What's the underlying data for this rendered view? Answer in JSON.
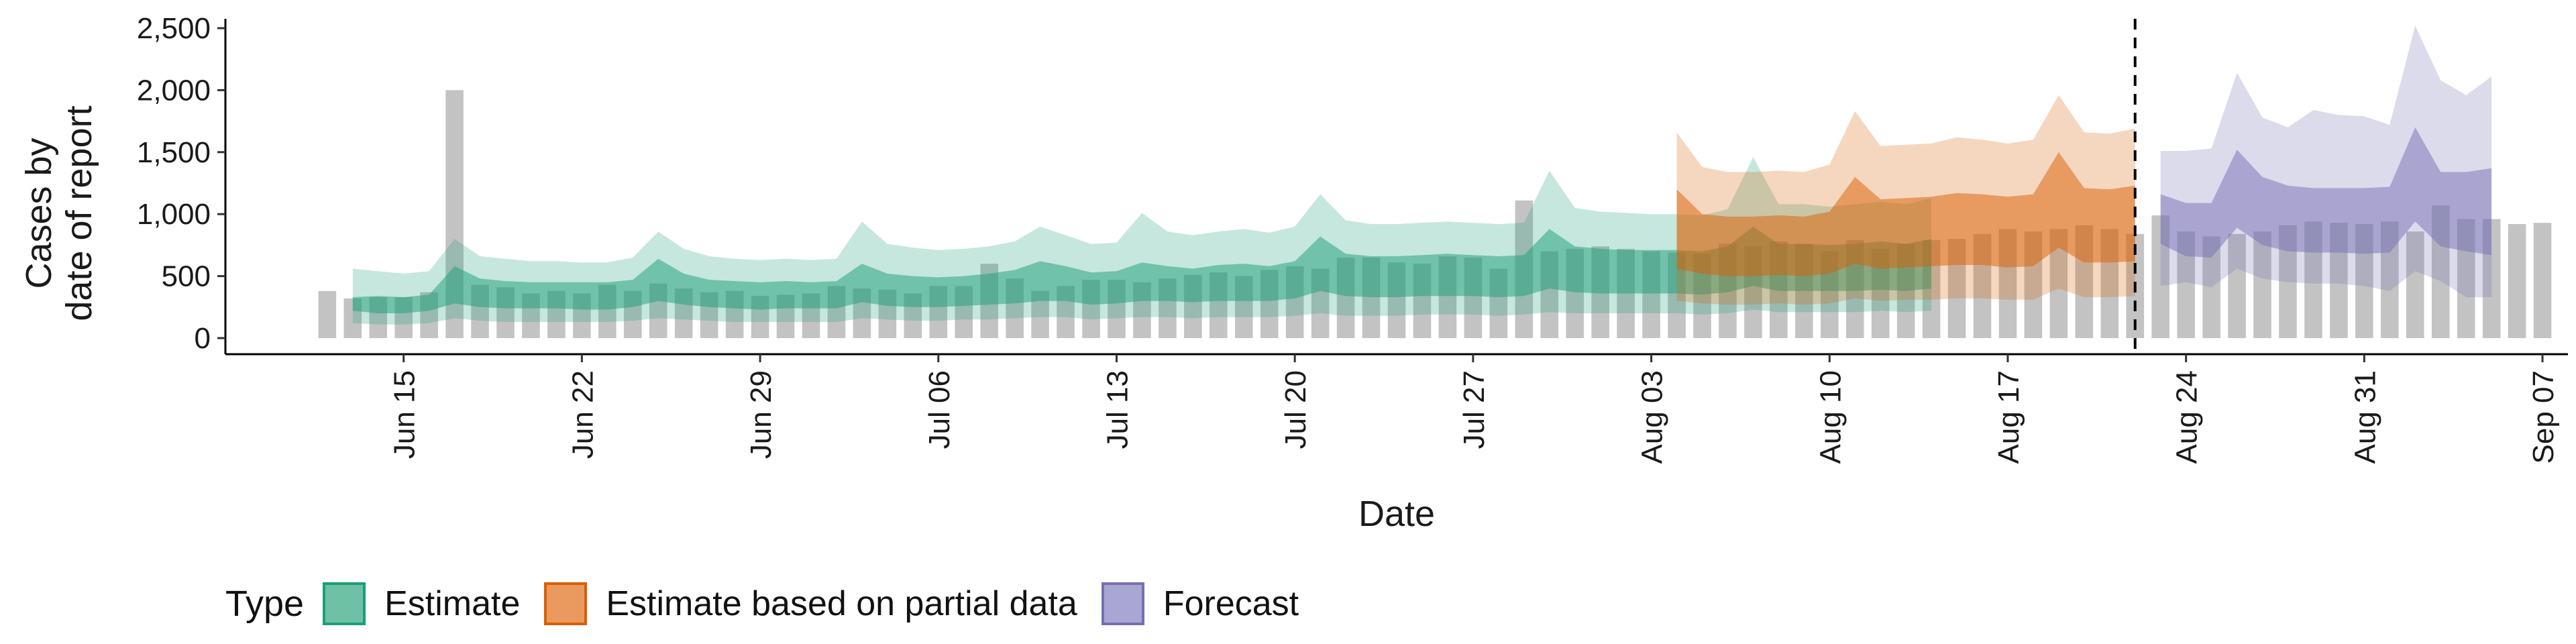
{
  "chart_data": {
    "type": "area",
    "xlabel": "Date",
    "ylabel": [
      "Cases by",
      "date of report"
    ],
    "ylim": [
      0,
      2600
    ],
    "yticks": [
      0,
      500,
      1000,
      1500,
      2000,
      2500
    ],
    "ytick_labels": [
      "0",
      "500",
      "1,000",
      "1,500",
      "2,000",
      "2,500"
    ],
    "xlim": [
      "2021-06-08",
      "2021-09-08"
    ],
    "xticks": [
      "2021-06-15",
      "2021-06-22",
      "2021-06-29",
      "2021-07-06",
      "2021-07-13",
      "2021-07-20",
      "2021-07-27",
      "2021-08-03",
      "2021-08-10",
      "2021-08-17",
      "2021-08-24",
      "2021-08-31",
      "2021-09-07"
    ],
    "xtick_labels": [
      "Jun 15",
      "Jun 22",
      "Jun 29",
      "Jul 06",
      "Jul 13",
      "Jul 20",
      "Jul 27",
      "Aug 03",
      "Aug 10",
      "Aug 17",
      "Aug 24",
      "Aug 31",
      "Sep 07"
    ],
    "vline_date": "2021-08-22",
    "grid": false,
    "legend_position": "bottom",
    "legend": {
      "title": "Type",
      "items": [
        {
          "label": "Estimate",
          "fill": "#6fc1a5",
          "border": "#1b9e77"
        },
        {
          "label": "Estimate based on partial data",
          "fill": "#eb9a5f",
          "border": "#d95f02"
        },
        {
          "label": "Forecast",
          "fill": "#a9a6d4",
          "border": "#7570b3"
        }
      ]
    },
    "colors": {
      "bars": "#bdbdbd",
      "Estimate": "#1b9e77",
      "Estimate based on partial data": "#d95f02",
      "Forecast": "#7570b3"
    },
    "reported_cases": {
      "start_date": "2021-06-12",
      "values": [
        380,
        320,
        330,
        330,
        370,
        2000,
        430,
        410,
        360,
        380,
        360,
        430,
        380,
        440,
        400,
        370,
        380,
        340,
        350,
        360,
        420,
        400,
        390,
        360,
        420,
        420,
        600,
        480,
        380,
        420,
        470,
        470,
        450,
        480,
        510,
        530,
        500,
        550,
        580,
        560,
        650,
        650,
        610,
        600,
        660,
        650,
        560,
        1110,
        700,
        720,
        740,
        720,
        700,
        690,
        680,
        760,
        740,
        780,
        760,
        700,
        790,
        720,
        760,
        790,
        800,
        840,
        880,
        860,
        880,
        910,
        880,
        840,
        990,
        860,
        820,
        840,
        860,
        910,
        940,
        930,
        920,
        940,
        860,
        1070,
        960,
        960,
        920,
        930
      ]
    },
    "series": [
      {
        "name": "Estimate",
        "start_date": "2021-06-13",
        "median": [
          340,
          330,
          320,
          330,
          430,
          380,
          370,
          360,
          360,
          360,
          360,
          380,
          480,
          420,
          380,
          370,
          360,
          370,
          360,
          370,
          470,
          420,
          400,
          390,
          400,
          410,
          440,
          470,
          460,
          420,
          430,
          480,
          460,
          450,
          470,
          480,
          460,
          500,
          620,
          540,
          520,
          520,
          530,
          540,
          530,
          520,
          530,
          660,
          580,
          570,
          560,
          560,
          560,
          550,
          580,
          680,
          600,
          600,
          590,
          600,
          610,
          600,
          630
        ],
        "inner": [
          [
            220,
            330
          ],
          [
            200,
            340
          ],
          [
            200,
            330
          ],
          [
            220,
            350
          ],
          [
            280,
            580
          ],
          [
            250,
            480
          ],
          [
            240,
            460
          ],
          [
            240,
            450
          ],
          [
            240,
            450
          ],
          [
            230,
            450
          ],
          [
            230,
            450
          ],
          [
            250,
            470
          ],
          [
            300,
            640
          ],
          [
            270,
            520
          ],
          [
            250,
            470
          ],
          [
            240,
            460
          ],
          [
            230,
            450
          ],
          [
            240,
            460
          ],
          [
            240,
            450
          ],
          [
            240,
            460
          ],
          [
            290,
            600
          ],
          [
            260,
            520
          ],
          [
            250,
            500
          ],
          [
            250,
            490
          ],
          [
            260,
            500
          ],
          [
            270,
            520
          ],
          [
            280,
            550
          ],
          [
            300,
            620
          ],
          [
            300,
            580
          ],
          [
            270,
            530
          ],
          [
            280,
            540
          ],
          [
            300,
            610
          ],
          [
            300,
            580
          ],
          [
            290,
            560
          ],
          [
            300,
            590
          ],
          [
            300,
            600
          ],
          [
            300,
            580
          ],
          [
            320,
            620
          ],
          [
            380,
            820
          ],
          [
            340,
            680
          ],
          [
            330,
            660
          ],
          [
            330,
            660
          ],
          [
            340,
            670
          ],
          [
            340,
            680
          ],
          [
            340,
            670
          ],
          [
            330,
            660
          ],
          [
            340,
            670
          ],
          [
            400,
            880
          ],
          [
            370,
            740
          ],
          [
            360,
            720
          ],
          [
            360,
            710
          ],
          [
            360,
            710
          ],
          [
            360,
            710
          ],
          [
            350,
            700
          ],
          [
            370,
            740
          ],
          [
            420,
            900
          ],
          [
            380,
            760
          ],
          [
            380,
            760
          ],
          [
            380,
            750
          ],
          [
            380,
            760
          ],
          [
            390,
            780
          ],
          [
            380,
            760
          ],
          [
            400,
            800
          ]
        ],
        "outer": [
          [
            120,
            560
          ],
          [
            110,
            540
          ],
          [
            110,
            520
          ],
          [
            120,
            540
          ],
          [
            160,
            800
          ],
          [
            140,
            660
          ],
          [
            130,
            640
          ],
          [
            130,
            620
          ],
          [
            130,
            620
          ],
          [
            130,
            610
          ],
          [
            130,
            610
          ],
          [
            140,
            650
          ],
          [
            160,
            860
          ],
          [
            150,
            720
          ],
          [
            140,
            660
          ],
          [
            130,
            640
          ],
          [
            130,
            630
          ],
          [
            130,
            640
          ],
          [
            130,
            630
          ],
          [
            130,
            640
          ],
          [
            160,
            940
          ],
          [
            150,
            760
          ],
          [
            140,
            730
          ],
          [
            140,
            710
          ],
          [
            150,
            720
          ],
          [
            150,
            740
          ],
          [
            160,
            780
          ],
          [
            170,
            900
          ],
          [
            170,
            830
          ],
          [
            150,
            760
          ],
          [
            160,
            770
          ],
          [
            170,
            1010
          ],
          [
            170,
            860
          ],
          [
            160,
            830
          ],
          [
            170,
            860
          ],
          [
            170,
            880
          ],
          [
            170,
            850
          ],
          [
            180,
            900
          ],
          [
            200,
            1160
          ],
          [
            180,
            950
          ],
          [
            180,
            920
          ],
          [
            180,
            920
          ],
          [
            190,
            930
          ],
          [
            190,
            940
          ],
          [
            190,
            930
          ],
          [
            180,
            920
          ],
          [
            190,
            930
          ],
          [
            210,
            1350
          ],
          [
            200,
            1050
          ],
          [
            200,
            1020
          ],
          [
            200,
            1010
          ],
          [
            200,
            1000
          ],
          [
            200,
            1000
          ],
          [
            190,
            990
          ],
          [
            200,
            1040
          ],
          [
            230,
            1460
          ],
          [
            210,
            1080
          ],
          [
            210,
            1080
          ],
          [
            210,
            1060
          ],
          [
            210,
            1080
          ],
          [
            220,
            1100
          ],
          [
            210,
            1080
          ],
          [
            220,
            1130
          ]
        ]
      },
      {
        "name": "Estimate based on partial data",
        "start_date": "2021-08-04",
        "median": [
          820,
          780,
          750,
          760,
          770,
          760,
          800,
          900,
          850,
          860,
          870,
          900,
          890,
          870,
          880,
          1100,
          930,
          920,
          950
        ],
        "inner": [
          [
            560,
            1200
          ],
          [
            520,
            1000
          ],
          [
            500,
            980
          ],
          [
            500,
            980
          ],
          [
            510,
            990
          ],
          [
            500,
            980
          ],
          [
            520,
            1020
          ],
          [
            600,
            1300
          ],
          [
            560,
            1120
          ],
          [
            570,
            1130
          ],
          [
            580,
            1140
          ],
          [
            590,
            1170
          ],
          [
            590,
            1160
          ],
          [
            570,
            1140
          ],
          [
            580,
            1160
          ],
          [
            730,
            1500
          ],
          [
            610,
            1210
          ],
          [
            610,
            1200
          ],
          [
            620,
            1230
          ]
        ],
        "outer": [
          [
            300,
            1660
          ],
          [
            280,
            1380
          ],
          [
            270,
            1340
          ],
          [
            270,
            1340
          ],
          [
            280,
            1350
          ],
          [
            270,
            1340
          ],
          [
            280,
            1400
          ],
          [
            320,
            1830
          ],
          [
            300,
            1550
          ],
          [
            310,
            1560
          ],
          [
            310,
            1570
          ],
          [
            320,
            1620
          ],
          [
            320,
            1600
          ],
          [
            310,
            1570
          ],
          [
            310,
            1600
          ],
          [
            400,
            1960
          ],
          [
            330,
            1660
          ],
          [
            330,
            1650
          ],
          [
            340,
            1690
          ]
        ]
      },
      {
        "name": "Forecast",
        "start_date": "2021-08-23",
        "median": [
          900,
          860,
          870,
          1100,
          920,
          880,
          850,
          850,
          850,
          860,
          1200,
          950,
          930,
          900
        ],
        "inner": [
          [
            760,
            1160
          ],
          [
            660,
            1090
          ],
          [
            650,
            1090
          ],
          [
            890,
            1520
          ],
          [
            750,
            1300
          ],
          [
            700,
            1230
          ],
          [
            690,
            1210
          ],
          [
            690,
            1210
          ],
          [
            680,
            1210
          ],
          [
            690,
            1220
          ],
          [
            940,
            1700
          ],
          [
            740,
            1340
          ],
          [
            700,
            1340
          ],
          [
            670,
            1370
          ]
        ],
        "outer": [
          [
            420,
            1510
          ],
          [
            450,
            1510
          ],
          [
            410,
            1530
          ],
          [
            560,
            2140
          ],
          [
            480,
            1780
          ],
          [
            450,
            1700
          ],
          [
            440,
            1840
          ],
          [
            440,
            1800
          ],
          [
            420,
            1790
          ],
          [
            380,
            1720
          ],
          [
            540,
            2520
          ],
          [
            460,
            2080
          ],
          [
            330,
            1960
          ],
          [
            330,
            2110
          ]
        ]
      }
    ]
  }
}
